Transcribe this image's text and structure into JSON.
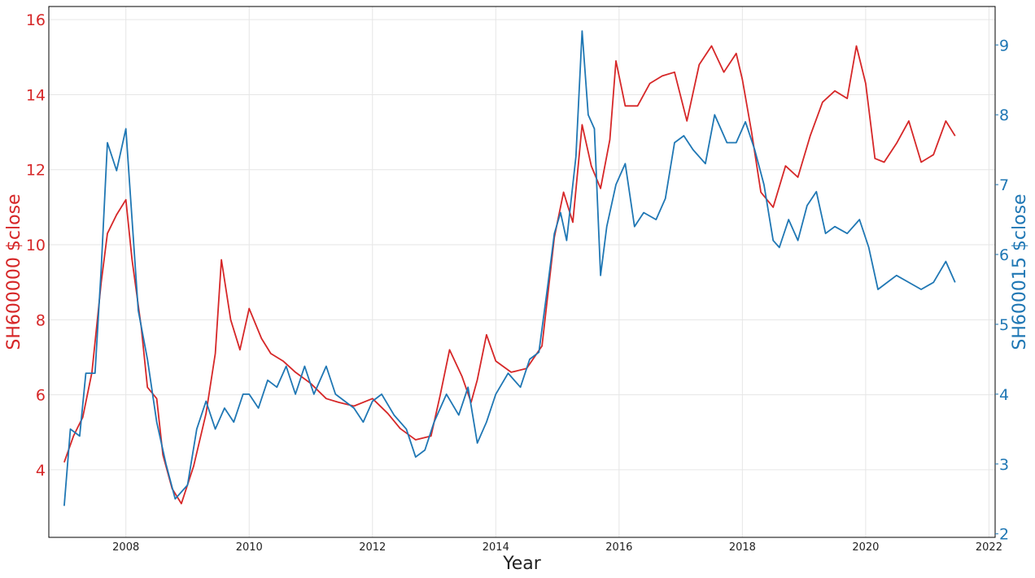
{
  "chart_data": {
    "type": "line",
    "xlabel": "Year",
    "x_ticks": [
      "2008",
      "2010",
      "2012",
      "2014",
      "2016",
      "2018",
      "2020",
      "2022"
    ],
    "xlim": [
      2006.75,
      2022.1
    ],
    "grid": true,
    "series": [
      {
        "name": "SH600000 $close",
        "axis": "left",
        "color": "#d62728",
        "ylabel": "SH600000 $close",
        "ylim": [
          2.2,
          16.35
        ],
        "y_ticks": [
          "4",
          "6",
          "8",
          "10",
          "12",
          "14",
          "16"
        ],
        "x": [
          2007.0,
          2007.15,
          2007.3,
          2007.45,
          2007.6,
          2007.7,
          2007.85,
          2008.0,
          2008.1,
          2008.25,
          2008.35,
          2008.5,
          2008.6,
          2008.75,
          2008.9,
          2009.1,
          2009.3,
          2009.45,
          2009.55,
          2009.7,
          2009.85,
          2010.0,
          2010.2,
          2010.35,
          2010.55,
          2010.75,
          2011.0,
          2011.25,
          2011.45,
          2011.7,
          2012.0,
          2012.25,
          2012.45,
          2012.7,
          2012.95,
          2013.1,
          2013.25,
          2013.45,
          2013.6,
          2013.7,
          2013.85,
          2014.0,
          2014.25,
          2014.5,
          2014.75,
          2014.95,
          2015.1,
          2015.25,
          2015.4,
          2015.55,
          2015.7,
          2015.85,
          2015.95,
          2016.1,
          2016.3,
          2016.5,
          2016.7,
          2016.9,
          2017.1,
          2017.3,
          2017.5,
          2017.7,
          2017.9,
          2018.0,
          2018.15,
          2018.3,
          2018.5,
          2018.7,
          2018.9,
          2019.1,
          2019.3,
          2019.5,
          2019.7,
          2019.85,
          2020.0,
          2020.15,
          2020.3,
          2020.5,
          2020.7,
          2020.9,
          2021.1,
          2021.3,
          2021.45
        ],
        "y": [
          4.2,
          4.9,
          5.4,
          6.6,
          9.0,
          10.3,
          10.8,
          11.2,
          9.6,
          7.8,
          6.2,
          5.9,
          4.4,
          3.5,
          3.1,
          4.1,
          5.5,
          7.1,
          9.6,
          8.0,
          7.2,
          8.3,
          7.5,
          7.1,
          6.9,
          6.6,
          6.3,
          5.9,
          5.8,
          5.7,
          5.9,
          5.5,
          5.1,
          4.8,
          4.9,
          6.0,
          7.2,
          6.5,
          5.8,
          6.4,
          7.6,
          6.9,
          6.6,
          6.7,
          7.3,
          10.2,
          11.4,
          10.6,
          13.2,
          12.1,
          11.5,
          12.8,
          14.9,
          13.7,
          13.7,
          14.3,
          14.5,
          14.6,
          13.3,
          14.8,
          15.3,
          14.6,
          15.1,
          14.4,
          13.0,
          11.4,
          11.0,
          12.1,
          11.8,
          12.9,
          13.8,
          14.1,
          13.9,
          15.3,
          14.3,
          12.3,
          12.2,
          12.7,
          13.3,
          12.2,
          12.4,
          13.3,
          12.9
        ]
      },
      {
        "name": "SH600015 $close",
        "axis": "right",
        "color": "#1f77b4",
        "ylabel": "SH600015 $close",
        "ylim": [
          1.95,
          9.55
        ],
        "y_ticks": [
          "2",
          "3",
          "4",
          "5",
          "6",
          "7",
          "8",
          "9"
        ],
        "x": [
          2007.0,
          2007.1,
          2007.25,
          2007.35,
          2007.5,
          2007.6,
          2007.7,
          2007.85,
          2008.0,
          2008.1,
          2008.2,
          2008.35,
          2008.5,
          2008.65,
          2008.8,
          2009.0,
          2009.15,
          2009.3,
          2009.45,
          2009.6,
          2009.75,
          2009.9,
          2010.0,
          2010.15,
          2010.3,
          2010.45,
          2010.6,
          2010.75,
          2010.9,
          2011.05,
          2011.25,
          2011.4,
          2011.55,
          2011.7,
          2011.85,
          2012.0,
          2012.15,
          2012.35,
          2012.55,
          2012.7,
          2012.85,
          2013.0,
          2013.2,
          2013.4,
          2013.55,
          2013.7,
          2013.85,
          2014.0,
          2014.2,
          2014.4,
          2014.55,
          2014.7,
          2014.85,
          2014.95,
          2015.05,
          2015.15,
          2015.3,
          2015.4,
          2015.5,
          2015.6,
          2015.7,
          2015.8,
          2015.95,
          2016.1,
          2016.25,
          2016.4,
          2016.6,
          2016.75,
          2016.9,
          2017.05,
          2017.2,
          2017.4,
          2017.55,
          2017.75,
          2017.9,
          2018.05,
          2018.2,
          2018.35,
          2018.5,
          2018.6,
          2018.75,
          2018.9,
          2019.05,
          2019.2,
          2019.35,
          2019.5,
          2019.7,
          2019.9,
          2020.05,
          2020.2,
          2020.35,
          2020.5,
          2020.7,
          2020.9,
          2021.1,
          2021.3,
          2021.45
        ],
        "y": [
          2.4,
          3.5,
          3.4,
          4.3,
          4.3,
          5.8,
          7.6,
          7.2,
          7.8,
          6.5,
          5.2,
          4.5,
          3.6,
          3.0,
          2.5,
          2.7,
          3.5,
          3.9,
          3.5,
          3.8,
          3.6,
          4.0,
          4.0,
          3.8,
          4.2,
          4.1,
          4.4,
          4.0,
          4.4,
          4.0,
          4.4,
          4.0,
          3.9,
          3.8,
          3.6,
          3.9,
          4.0,
          3.7,
          3.5,
          3.1,
          3.2,
          3.6,
          4.0,
          3.7,
          4.1,
          3.3,
          3.6,
          4.0,
          4.3,
          4.1,
          4.5,
          4.6,
          5.6,
          6.3,
          6.6,
          6.2,
          7.4,
          9.2,
          8.0,
          7.8,
          5.7,
          6.4,
          7.0,
          7.3,
          6.4,
          6.6,
          6.5,
          6.8,
          7.6,
          7.7,
          7.5,
          7.3,
          8.0,
          7.6,
          7.6,
          7.9,
          7.5,
          7.0,
          6.2,
          6.1,
          6.5,
          6.2,
          6.7,
          6.9,
          6.3,
          6.4,
          6.3,
          6.5,
          6.1,
          5.5,
          5.6,
          5.7,
          5.6,
          5.5,
          5.6,
          5.9,
          5.6
        ]
      }
    ]
  }
}
